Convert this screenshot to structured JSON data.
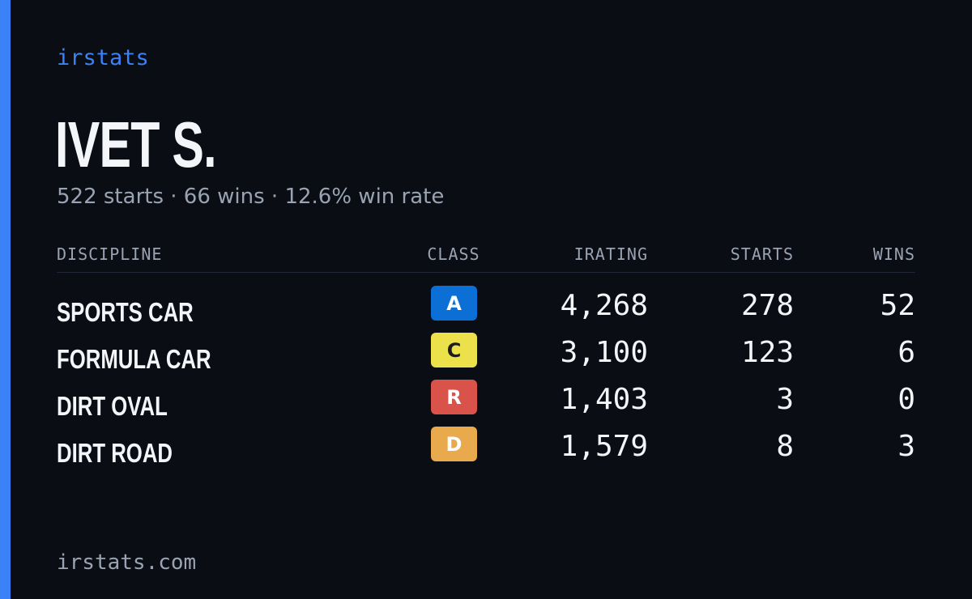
{
  "brand": "irstats",
  "driver": {
    "name": "IVET S.",
    "summary": "522 starts · 66 wins · 12.6% win rate"
  },
  "table": {
    "headers": {
      "discipline": "DISCIPLINE",
      "class": "CLASS",
      "irating": "IRATING",
      "starts": "STARTS",
      "wins": "WINS"
    },
    "rows": [
      {
        "discipline": "SPORTS CAR",
        "class": "A",
        "irating": "4,268",
        "starts": "278",
        "wins": "52"
      },
      {
        "discipline": "FORMULA CAR",
        "class": "C",
        "irating": "3,100",
        "starts": "123",
        "wins": "6"
      },
      {
        "discipline": "DIRT OVAL",
        "class": "R",
        "irating": "1,403",
        "starts": "3",
        "wins": "0"
      },
      {
        "discipline": "DIRT ROAD",
        "class": "D",
        "irating": "1,579",
        "starts": "8",
        "wins": "3"
      }
    ]
  },
  "class_colors": {
    "A": {
      "bg": "#0b6fd6",
      "fg": "#ffffff"
    },
    "C": {
      "bg": "#ece14a",
      "fg": "#1c1c1c"
    },
    "R": {
      "bg": "#d9534a",
      "fg": "#ffffff"
    },
    "D": {
      "bg": "#e9a94d",
      "fg": "#ffffff"
    }
  },
  "footer": "irstats.com"
}
